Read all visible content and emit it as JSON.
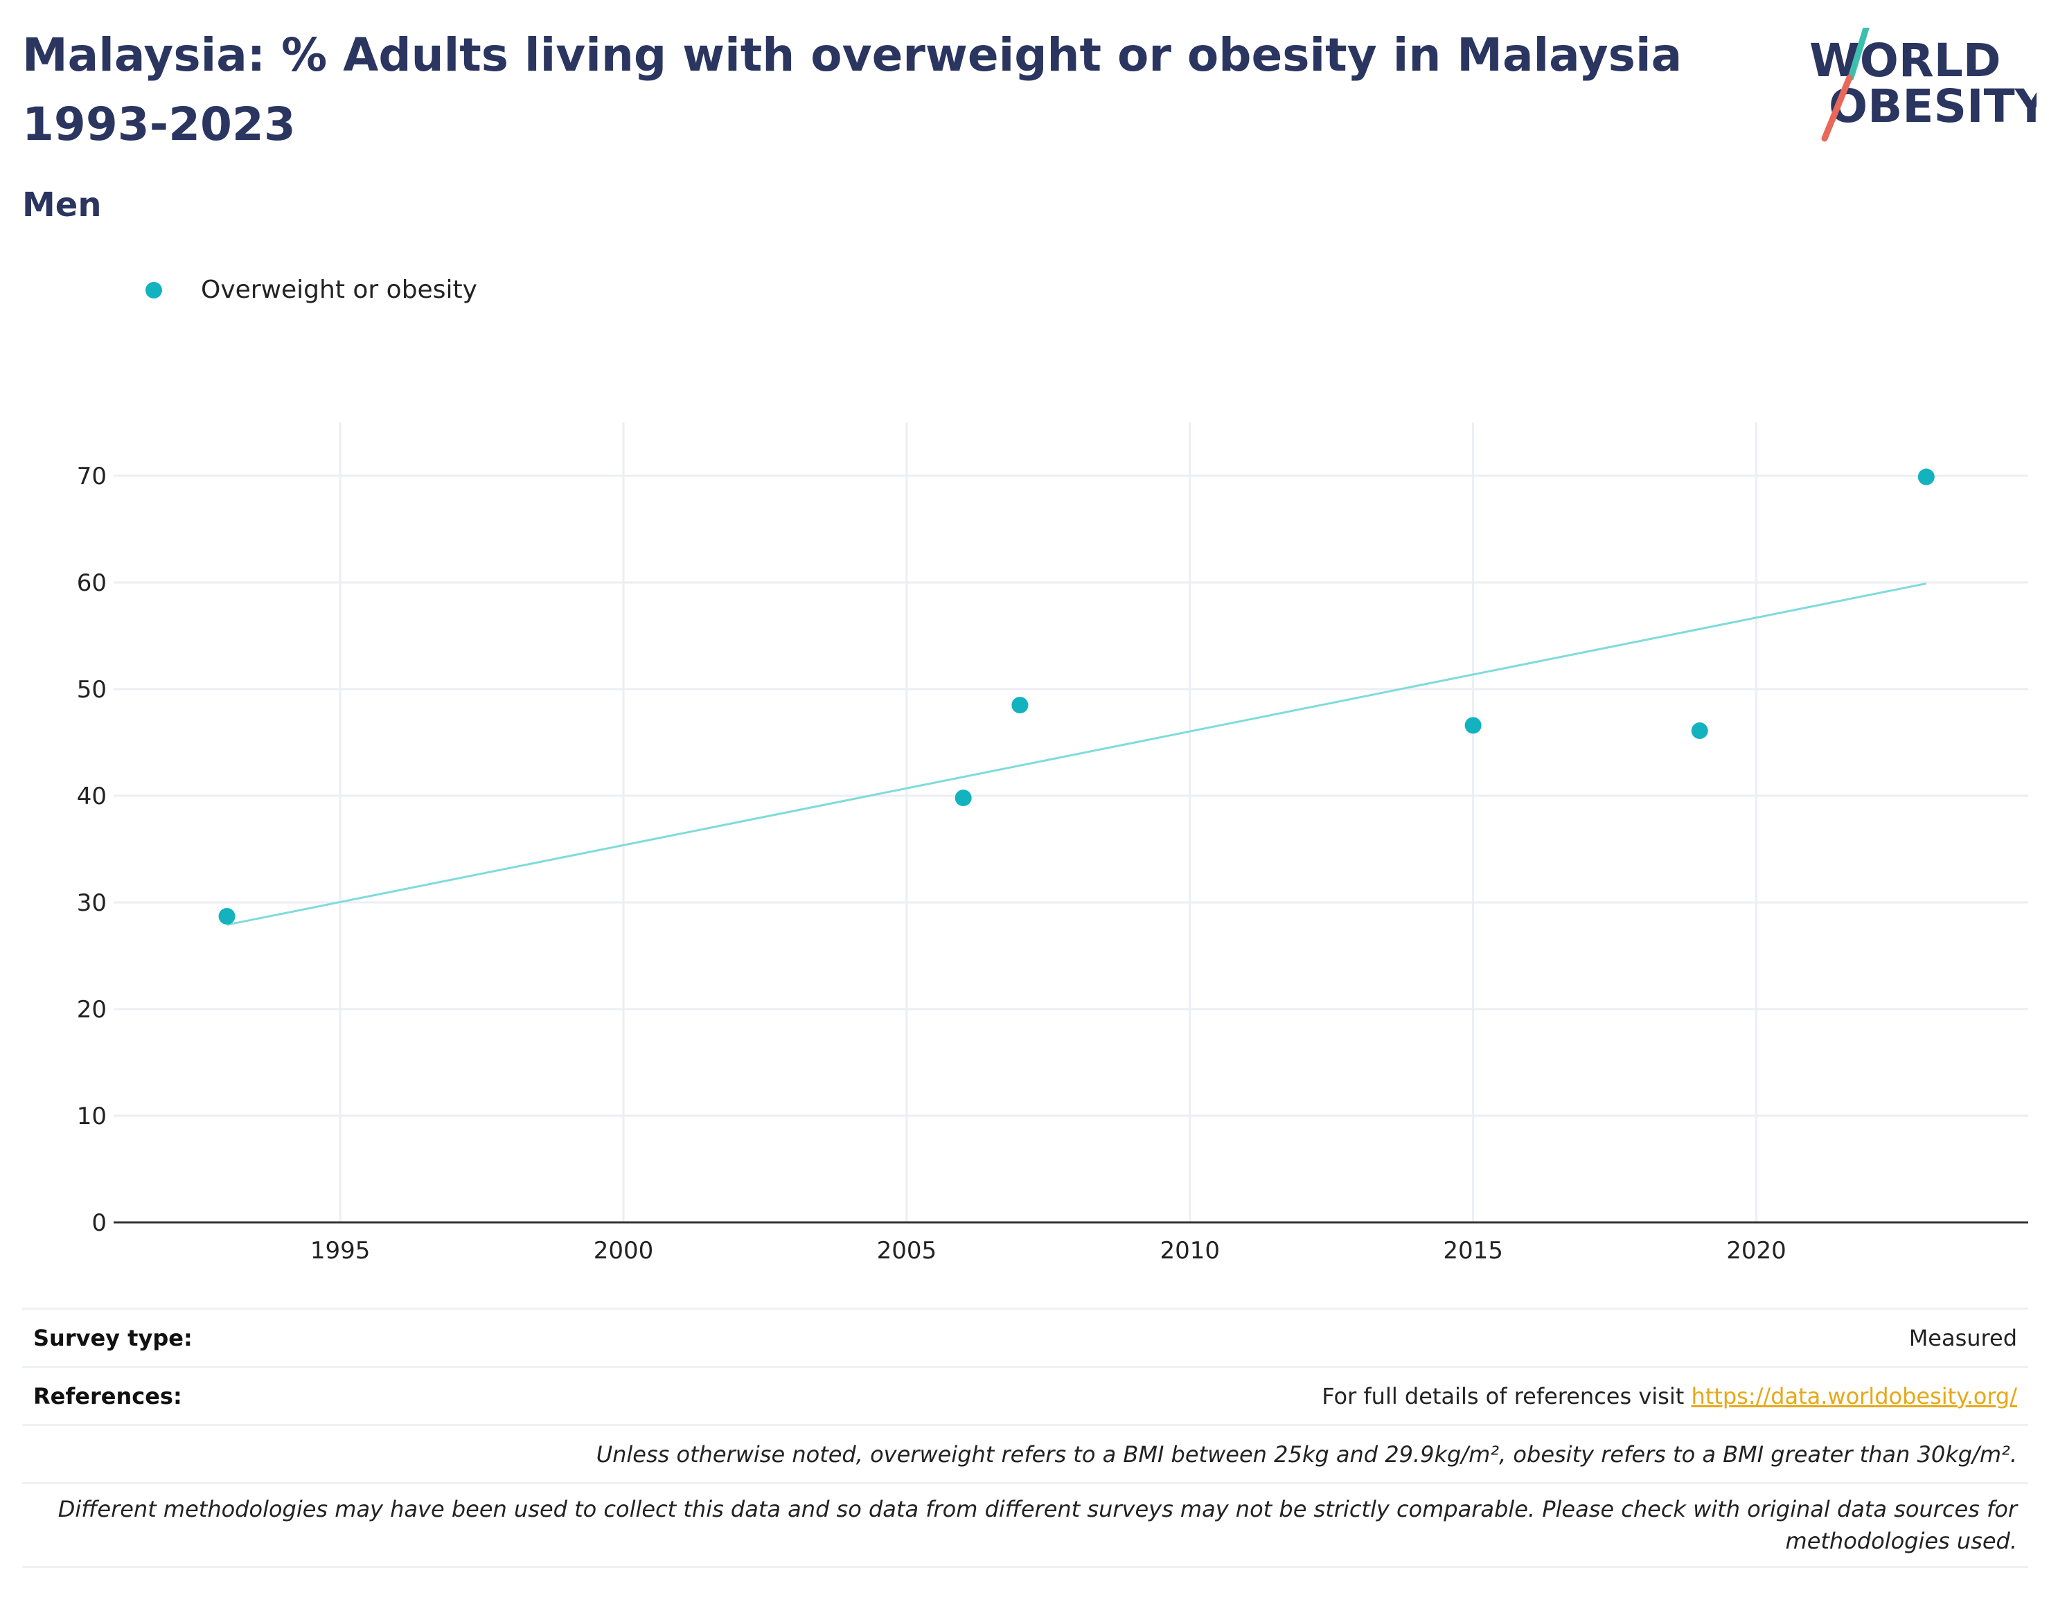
{
  "header": {
    "title": "Malaysia: % Adults living with overweight or obesity in Malaysia 1993-2023",
    "subtitle": "Men"
  },
  "logo": {
    "line1": "WORLD",
    "line2": "OBESITY",
    "accent_colors": [
      "#3cbfae",
      "#e8685a"
    ],
    "text_color": "#2a3560"
  },
  "legend": {
    "label": "Overweight or obesity",
    "color": "#12b3bf"
  },
  "chart_data": {
    "type": "scatter",
    "series": [
      {
        "name": "Overweight or obesity",
        "color": "#12b3bf",
        "x": [
          1993,
          2006,
          2007,
          2015,
          2019,
          2023
        ],
        "y": [
          28.7,
          39.8,
          48.5,
          46.6,
          46.1,
          69.9
        ]
      }
    ],
    "trendline": {
      "x": [
        1993,
        2023
      ],
      "y": [
        27.9,
        59.9
      ],
      "color": "#7fdbdc"
    },
    "xticks": [
      1995,
      2000,
      2005,
      2010,
      2015,
      2020
    ],
    "yticks": [
      0,
      10,
      20,
      30,
      40,
      50,
      60,
      70
    ],
    "xlim": [
      1991,
      2024.8
    ],
    "ylim": [
      0,
      75
    ],
    "grid": true,
    "legend_position": "top-left"
  },
  "footer": {
    "survey_type_label": "Survey type:",
    "survey_type_value": "Measured",
    "references_label": "References:",
    "references_text": "For full details of references visit ",
    "references_link": "https://data.worldobesity.org/",
    "note1": "Unless otherwise noted, overweight refers to a BMI between 25kg and 29.9kg/m², obesity refers to a BMI greater than 30kg/m².",
    "note2": "Different methodologies may have been used to collect this data and so data from different surveys may not be strictly comparable. Please check with original data sources for methodologies used."
  }
}
